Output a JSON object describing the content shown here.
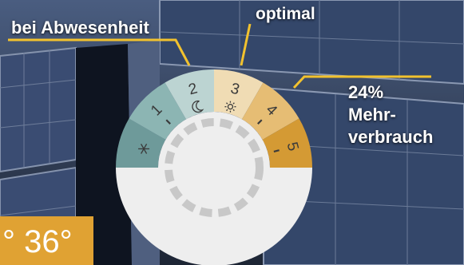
{
  "callouts": {
    "absent": "bei Abwesenheit",
    "optimal": "optimal",
    "extra": {
      "percent": "24%",
      "line1": "Mehr-",
      "line2": "verbrauch"
    }
  },
  "dial": {
    "segments": [
      {
        "number": "",
        "icon": "snowflake-icon",
        "color": "#6e9a9a"
      },
      {
        "number": "1",
        "icon": "",
        "color": "#8cb5b3"
      },
      {
        "number": "2",
        "icon": "moon-icon",
        "color": "#bcd4d2"
      },
      {
        "number": "3",
        "icon": "sun-icon",
        "color": "#f0dcb4"
      },
      {
        "number": "4",
        "icon": "",
        "color": "#e6bd74"
      },
      {
        "number": "5",
        "icon": "",
        "color": "#d49a34"
      }
    ],
    "knob_color": "#eeeeee"
  },
  "temperature": "° 36°",
  "colors": {
    "callout_line": "#f2c22e",
    "temp_box": "#e0a233"
  }
}
